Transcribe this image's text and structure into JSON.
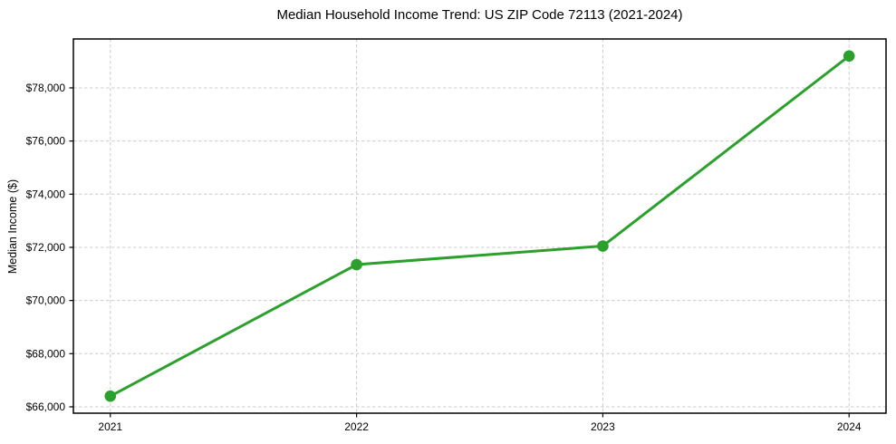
{
  "chart_data": {
    "type": "line",
    "title": "Median Household Income Trend: US ZIP Code 72113 (2021-2024)",
    "xlabel": "",
    "ylabel": "Median Income ($)",
    "categories": [
      "2021",
      "2022",
      "2023",
      "2024"
    ],
    "x_positions": [
      2021,
      2022,
      2023,
      2024
    ],
    "values": [
      66400,
      71350,
      72050,
      79200
    ],
    "y_ticks": [
      66000,
      68000,
      70000,
      72000,
      74000,
      76000,
      78000
    ],
    "y_tick_labels": [
      "$66,000",
      "$68,000",
      "$70,000",
      "$72,000",
      "$74,000",
      "$76,000",
      "$78,000"
    ],
    "xlim": [
      2020.85,
      2024.15
    ],
    "ylim": [
      65760,
      79840
    ],
    "grid": true,
    "grid_style": "dashed",
    "grid_color": "#cccccc",
    "line_color": "#2ca02c",
    "marker": "circle",
    "marker_color": "#2ca02c",
    "frame_color": "#000000",
    "background": "#ffffff",
    "legend": "none"
  }
}
